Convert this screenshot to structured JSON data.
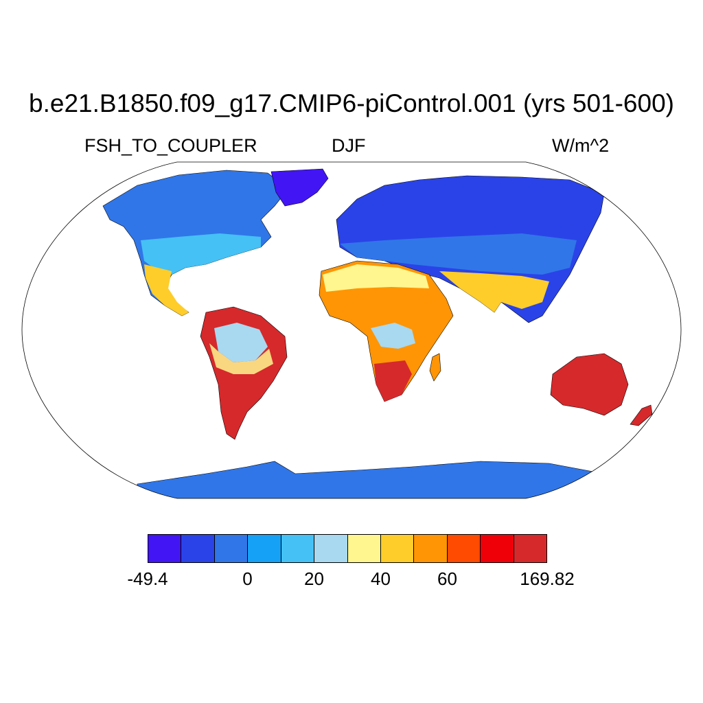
{
  "header": {
    "title": "b.e21.B1850.f09_g17.CMIP6-piControl.001 (yrs 501-600)",
    "variable": "FSH_TO_COUPLER",
    "season": "DJF",
    "units": "W/m^2"
  },
  "colorbar": {
    "colors": [
      "#4215f5",
      "#2a43e8",
      "#3076e8",
      "#14a1f6",
      "#45c1f5",
      "#a8d9f0",
      "#fff68f",
      "#ffcd2a",
      "#ff9505",
      "#ff4a02",
      "#ef0008",
      "#d6292c"
    ],
    "tick_labels": [
      {
        "text": "-49.4",
        "boundary": 0
      },
      {
        "text": "0",
        "boundary": 3
      },
      {
        "text": "20",
        "boundary": 5
      },
      {
        "text": "40",
        "boundary": 7
      },
      {
        "text": "60",
        "boundary": 9
      },
      {
        "text": "169.82",
        "boundary": 12
      }
    ]
  },
  "map": {
    "projection": "Robinson",
    "ocean_color": "#ffffff",
    "outline_color": "#000000"
  }
}
